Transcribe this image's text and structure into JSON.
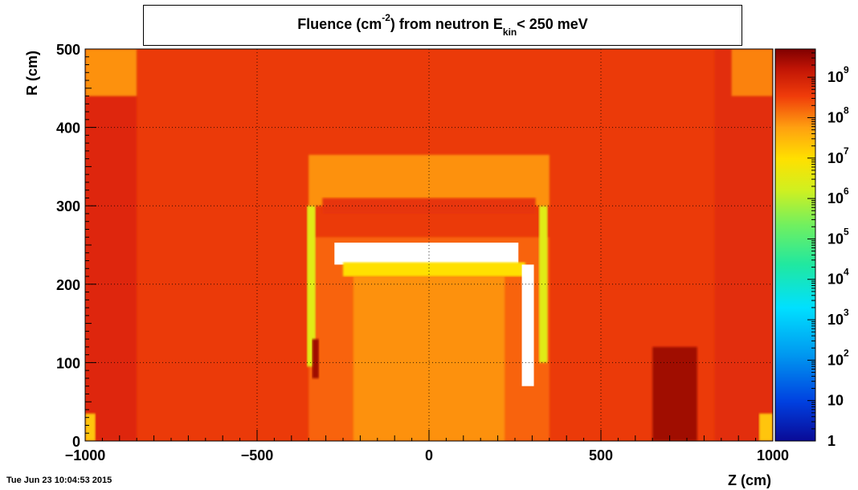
{
  "chart_data": {
    "type": "heatmap",
    "title_parts": {
      "a": "Fluence (cm",
      "sup": "-2",
      "b": ") from   neutron  E",
      "sub": "kin",
      "c": "< 250 meV"
    },
    "xlabel": "Z (cm)",
    "ylabel": "R (cm)",
    "xlim": [
      -1000,
      1000
    ],
    "ylim": [
      0,
      500
    ],
    "x_ticks": [
      {
        "value": -1000,
        "label": "−1000"
      },
      {
        "value": -500,
        "label": "−500"
      },
      {
        "value": 0,
        "label": "0"
      },
      {
        "value": 500,
        "label": "500"
      },
      {
        "value": 1000,
        "label": "1000"
      }
    ],
    "y_ticks": [
      {
        "value": 0,
        "label": "0"
      },
      {
        "value": 100,
        "label": "100"
      },
      {
        "value": 200,
        "label": "200"
      },
      {
        "value": 300,
        "label": "300"
      },
      {
        "value": 400,
        "label": "400"
      },
      {
        "value": 500,
        "label": "500"
      }
    ],
    "colorbar": {
      "scale": "log",
      "range": [
        1,
        5000000000.0
      ],
      "ticks": [
        {
          "exp": 0,
          "base": "1",
          "sup": ""
        },
        {
          "exp": 1,
          "base": "10",
          "sup": ""
        },
        {
          "exp": 2,
          "base": "10",
          "sup": "2"
        },
        {
          "exp": 3,
          "base": "10",
          "sup": "3"
        },
        {
          "exp": 4,
          "base": "10",
          "sup": "4"
        },
        {
          "exp": 5,
          "base": "10",
          "sup": "5"
        },
        {
          "exp": 6,
          "base": "10",
          "sup": "6"
        },
        {
          "exp": 7,
          "base": "10",
          "sup": "7"
        },
        {
          "exp": 8,
          "base": "10",
          "sup": "8"
        },
        {
          "exp": 9,
          "base": "10",
          "sup": "9"
        }
      ]
    },
    "grid": true,
    "regions": [
      {
        "name": "background",
        "z": [
          -1000,
          1000
        ],
        "r": [
          0,
          500
        ],
        "log10_fluence": 8.0
      },
      {
        "name": "left-outer-band",
        "z": [
          -1000,
          -850
        ],
        "r": [
          0,
          500
        ],
        "log10_fluence": 8.3
      },
      {
        "name": "right-outer-band",
        "z": [
          830,
          1000
        ],
        "r": [
          0,
          500
        ],
        "log10_fluence": 8.2
      },
      {
        "name": "top-left-corner",
        "z": [
          -1000,
          -850
        ],
        "r": [
          440,
          500
        ],
        "log10_fluence": 7.3
      },
      {
        "name": "top-right-corner",
        "z": [
          880,
          1000
        ],
        "r": [
          440,
          500
        ],
        "log10_fluence": 7.4
      },
      {
        "name": "bottom-left-corner",
        "z": [
          -1000,
          -970
        ],
        "r": [
          0,
          35
        ],
        "log10_fluence": 6.8
      },
      {
        "name": "bottom-right-corner",
        "z": [
          960,
          1000
        ],
        "r": [
          0,
          35
        ],
        "log10_fluence": 6.8
      },
      {
        "name": "detector-outer-band",
        "z": [
          -350,
          350
        ],
        "r": [
          300,
          365
        ],
        "log10_fluence": 7.3
      },
      {
        "name": "detector-cryostat-top",
        "z": [
          -310,
          310
        ],
        "r": [
          290,
          310
        ],
        "log10_fluence": 8.1
      },
      {
        "name": "detector-inner-region",
        "z": [
          -350,
          350
        ],
        "r": [
          0,
          260
        ],
        "log10_fluence": 7.6
      },
      {
        "name": "detector-core",
        "z": [
          -220,
          220
        ],
        "r": [
          0,
          210
        ],
        "log10_fluence": 7.3
      },
      {
        "name": "left-endcap-column",
        "z": [
          -355,
          -330
        ],
        "r": [
          95,
          300
        ],
        "log10_fluence": 6.1
      },
      {
        "name": "right-endcap-column",
        "z": [
          320,
          345
        ],
        "r": [
          100,
          300
        ],
        "log10_fluence": 6.1
      },
      {
        "name": "barrel-white-region",
        "z": [
          -275,
          260
        ],
        "r": [
          225,
          253
        ],
        "log10_fluence": 0
      },
      {
        "name": "barrel-yellow-band",
        "z": [
          -250,
          280
        ],
        "r": [
          210,
          228
        ],
        "log10_fluence": 6.5
      },
      {
        "name": "right-white-strip",
        "z": [
          270,
          305
        ],
        "r": [
          70,
          225
        ],
        "log10_fluence": 0
      },
      {
        "name": "right-dark-spot",
        "z": [
          650,
          780
        ],
        "r": [
          0,
          120
        ],
        "log10_fluence": 8.9
      },
      {
        "name": "left-dark-spot",
        "z": [
          -340,
          -320
        ],
        "r": [
          80,
          130
        ],
        "log10_fluence": 8.9
      }
    ]
  },
  "footer": {
    "timestamp": "Tue Jun 23 10:04:53 2015"
  }
}
